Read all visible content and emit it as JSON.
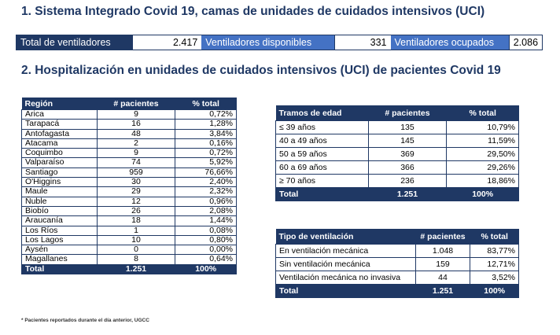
{
  "section1_title": "1. Sistema Integrado Covid 19, camas de unidades de cuidados intensivos (UCI)",
  "summary": {
    "total_label": "Total de ventiladores",
    "total_value": "2.417",
    "available_label": "Ventiladores disponibles",
    "available_value": "331",
    "occupied_label": "Ventiladores ocupados",
    "occupied_value": "2.086"
  },
  "section2_title": "2. Hospitalización en unidades de cuidados intensivos (UCI) de pacientes Covid 19",
  "region_table": {
    "headers": [
      "Región",
      "# pacientes",
      "% total"
    ],
    "rows": [
      [
        "Arica",
        "9",
        "0,72%"
      ],
      [
        "Tarapacá",
        "16",
        "1,28%"
      ],
      [
        "Antofagasta",
        "48",
        "3,84%"
      ],
      [
        "Atacama",
        "2",
        "0,16%"
      ],
      [
        "Coquimbo",
        "9",
        "0,72%"
      ],
      [
        "Valparaíso",
        "74",
        "5,92%"
      ],
      [
        "Santiago",
        "959",
        "76,66%"
      ],
      [
        "O'Higgins",
        "30",
        "2,40%"
      ],
      [
        "Maule",
        "29",
        "2,32%"
      ],
      [
        "Ñuble",
        "12",
        "0,96%"
      ],
      [
        "Biobío",
        "26",
        "2,08%"
      ],
      [
        "Araucanía",
        "18",
        "1,44%"
      ],
      [
        "Los Ríos",
        "1",
        "0,08%"
      ],
      [
        "Los Lagos",
        "10",
        "0,80%"
      ],
      [
        "Aysén",
        "0",
        "0,00%"
      ],
      [
        "Magallanes",
        "8",
        "0,64%"
      ]
    ],
    "total": [
      "Total",
      "1.251",
      "100%"
    ]
  },
  "age_table": {
    "headers": [
      "Tramos de edad",
      "# pacientes",
      "% total"
    ],
    "rows": [
      [
        "≤ 39 años",
        "135",
        "10,79%"
      ],
      [
        "40 a 49 años",
        "145",
        "11,59%"
      ],
      [
        "50 a 59 años",
        "369",
        "29,50%"
      ],
      [
        "60 a 69 años",
        "366",
        "29,26%"
      ],
      [
        "≥ 70 años",
        "236",
        "18,86%"
      ]
    ],
    "total": [
      "Total",
      "1.251",
      "100%"
    ]
  },
  "vent_table": {
    "headers": [
      "Tipo de ventilación",
      "# pacientes",
      "% total"
    ],
    "rows": [
      [
        "En ventilación mecánica",
        "1.048",
        "83,77%"
      ],
      [
        "Sin ventilación mecánica",
        "159",
        "12,71%"
      ],
      [
        "Ventilación mecánica no invasiva",
        "44",
        "3,52%"
      ]
    ],
    "total": [
      "Total",
      "1.251",
      "100%"
    ]
  },
  "footnote": "* Pacientes reportados durante el día anterior, UGCC"
}
